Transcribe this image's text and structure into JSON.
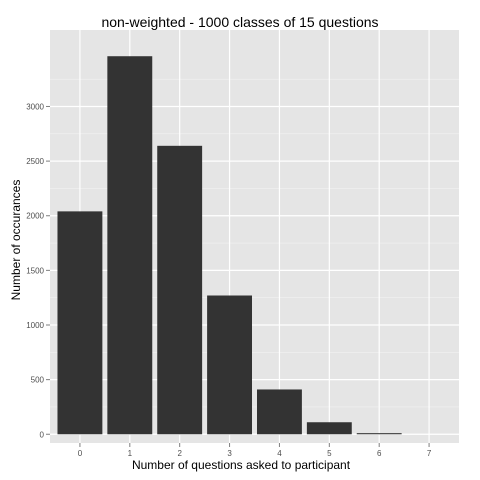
{
  "chart_data": {
    "type": "bar",
    "title": "non-weighted - 1000 classes of 15 questions",
    "xlabel": "Number of questions asked to participant",
    "ylabel": "Number of occurances",
    "categories": [
      "0",
      "1",
      "2",
      "3",
      "4",
      "5",
      "6",
      "7"
    ],
    "values": [
      2040,
      3460,
      2640,
      1270,
      410,
      110,
      10,
      0
    ],
    "ylim": [
      -80,
      3700
    ],
    "y_ticks": [
      0,
      500,
      1000,
      1500,
      2000,
      2500,
      3000
    ],
    "y_tick_labels": [
      "0",
      "500",
      "1000",
      "1500",
      "2000",
      "2500",
      "3000"
    ],
    "x_tick_labels": [
      "0",
      "1",
      "2",
      "3",
      "4",
      "5",
      "6",
      "7"
    ],
    "grid": true,
    "legend": "none",
    "colors": {
      "bar": "#333333",
      "panel": "#e5e5e5",
      "grid_major": "#ffffff",
      "grid_minor": "#f2f2f2"
    }
  }
}
